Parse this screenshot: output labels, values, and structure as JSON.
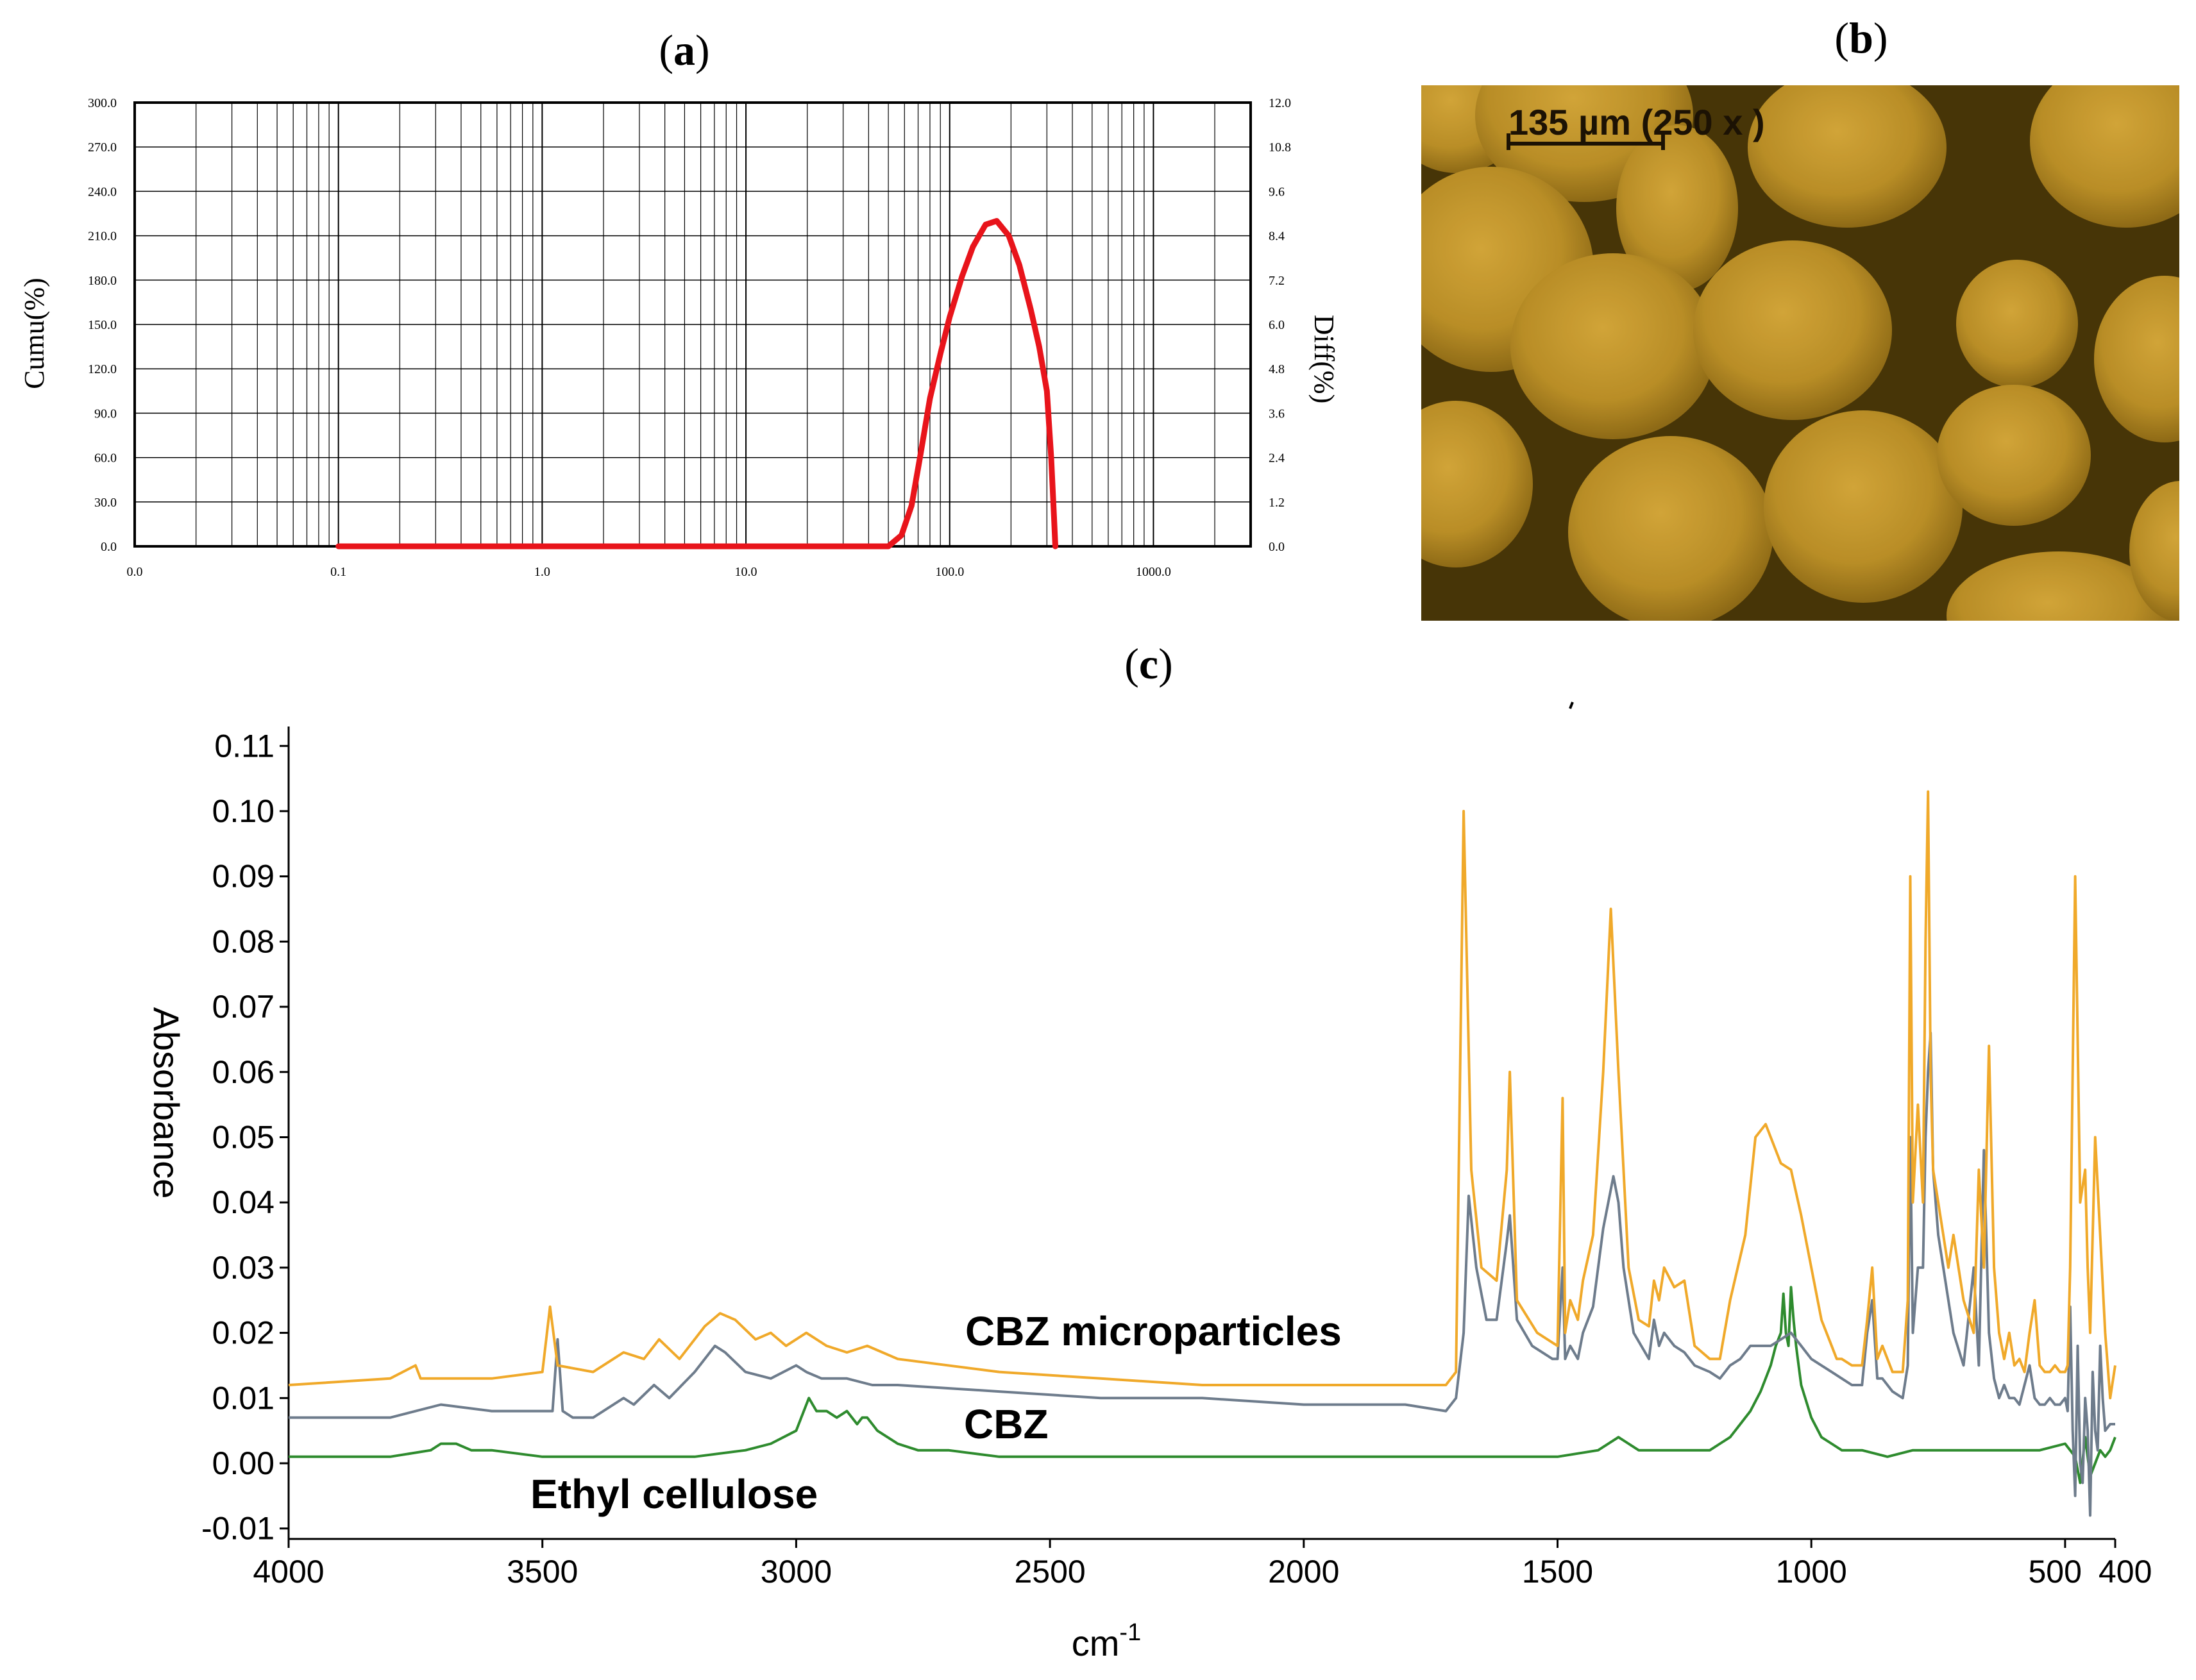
{
  "panels": {
    "a": {
      "label": "a",
      "chart_data": {
        "type": "line",
        "title": "",
        "x_scale": "log",
        "xlim": [
          0.01,
          3000
        ],
        "x_ticks": [
          0.01,
          0.1,
          1,
          10,
          100,
          1000
        ],
        "x_tick_labels": [
          "0.0",
          "0.1",
          "1.0",
          "10.0",
          "100.0",
          "1000.0"
        ],
        "ylabel_left": "Cumu(%)",
        "ylim_left": [
          0,
          300
        ],
        "y_tick_labels_left": [
          "0.0",
          "30.0",
          "60.0",
          "90.0",
          "120.0",
          "150.0",
          "180.0",
          "210.0",
          "240.0",
          "270.0",
          "300.0"
        ],
        "ylabel_right": "Diff(%)",
        "ylim_right": [
          0,
          12
        ],
        "y_tick_labels_right": [
          "0.0",
          "1.2",
          "2.4",
          "3.6",
          "4.8",
          "6.0",
          "7.2",
          "8.4",
          "9.6",
          "10.8",
          "12.0"
        ],
        "grid": true,
        "series": [
          {
            "name": "Diff(%)",
            "axis": "right",
            "color": "#e8141b",
            "x": [
              0.1,
              1,
              10,
              50,
              58,
              65,
              72,
              80,
              90,
              100,
              115,
              130,
              150,
              170,
              195,
              220,
              250,
              275,
              300,
              315,
              325,
              330
            ],
            "y": [
              0,
              0,
              0,
              0,
              0.3,
              1.1,
              2.5,
              4.0,
              5.2,
              6.2,
              7.3,
              8.1,
              8.7,
              8.8,
              8.4,
              7.6,
              6.4,
              5.4,
              4.2,
              2.4,
              0.8,
              0
            ]
          }
        ]
      }
    },
    "b": {
      "label": "b",
      "image_description": "optical micrograph of spherical yellowish microparticles",
      "scale_bar_text": "135 µm (250 x )"
    },
    "c": {
      "label": "c",
      "chart_data": {
        "type": "line",
        "title": "",
        "xlabel": "cm",
        "xlabel_sup": "-1",
        "ylabel": "Absorbance",
        "xlim": [
          4000,
          400
        ],
        "x_ticks": [
          4000,
          3500,
          3000,
          2500,
          2000,
          1500,
          1000,
          500,
          400
        ],
        "x_tick_labels": [
          "4000",
          "3500",
          "3000",
          "2500",
          "2000",
          "1500",
          "1000",
          "500",
          "400"
        ],
        "ylim": [
          -0.01,
          0.11
        ],
        "y_ticks": [
          -0.01,
          0.0,
          0.01,
          0.02,
          0.03,
          0.04,
          0.05,
          0.06,
          0.07,
          0.08,
          0.09,
          0.1,
          0.11
        ],
        "y_tick_labels": [
          "-0.01",
          "0.00",
          "0.01",
          "0.02",
          "0.03",
          "0.04",
          "0.05",
          "0.06",
          "0.07",
          "0.08",
          "0.09",
          "0.10",
          "0.11"
        ],
        "series": [
          {
            "name": "CBZ microparticles",
            "color": "#f0a92a",
            "x": [
              4000,
              3800,
              3750,
              3740,
              3700,
              3600,
              3500,
              3485,
              3470,
              3400,
              3340,
              3300,
              3270,
              3230,
              3180,
              3150,
              3120,
              3080,
              3050,
              3020,
              2980,
              2940,
              2900,
              2860,
              2800,
              2600,
              2400,
              2200,
              2000,
              1800,
              1720,
              1700,
              1685,
              1670,
              1650,
              1620,
              1600,
              1594,
              1580,
              1540,
              1500,
              1490,
              1485,
              1475,
              1460,
              1450,
              1430,
              1410,
              1395,
              1380,
              1360,
              1340,
              1320,
              1310,
              1300,
              1290,
              1270,
              1250,
              1230,
              1200,
              1180,
              1160,
              1130,
              1110,
              1090,
              1060,
              1040,
              1020,
              1000,
              980,
              960,
              950,
              940,
              920,
              900,
              890,
              880,
              870,
              860,
              840,
              820,
              810,
              805,
              800,
              790,
              780,
              775,
              770,
              765,
              760,
              750,
              740,
              730,
              720,
              700,
              680,
              670,
              660,
              650,
              640,
              630,
              620,
              610,
              600,
              590,
              580,
              570,
              560,
              550,
              540,
              530,
              520,
              510,
              500,
              495,
              490,
              480,
              470,
              460,
              455,
              450,
              440,
              430,
              420,
              410,
              400
            ],
            "y": [
              0.012,
              0.013,
              0.015,
              0.013,
              0.013,
              0.013,
              0.014,
              0.024,
              0.015,
              0.014,
              0.017,
              0.016,
              0.019,
              0.016,
              0.021,
              0.023,
              0.022,
              0.019,
              0.02,
              0.018,
              0.02,
              0.018,
              0.017,
              0.018,
              0.016,
              0.014,
              0.013,
              0.012,
              0.012,
              0.012,
              0.012,
              0.014,
              0.1,
              0.045,
              0.03,
              0.028,
              0.045,
              0.06,
              0.025,
              0.02,
              0.018,
              0.056,
              0.02,
              0.025,
              0.022,
              0.028,
              0.035,
              0.06,
              0.085,
              0.06,
              0.03,
              0.022,
              0.021,
              0.028,
              0.025,
              0.03,
              0.027,
              0.028,
              0.018,
              0.016,
              0.016,
              0.025,
              0.035,
              0.05,
              0.052,
              0.046,
              0.045,
              0.038,
              0.03,
              0.022,
              0.018,
              0.016,
              0.016,
              0.015,
              0.015,
              0.022,
              0.03,
              0.016,
              0.018,
              0.014,
              0.014,
              0.025,
              0.09,
              0.04,
              0.055,
              0.04,
              0.08,
              0.103,
              0.06,
              0.045,
              0.04,
              0.035,
              0.03,
              0.035,
              0.025,
              0.02,
              0.045,
              0.03,
              0.064,
              0.03,
              0.02,
              0.016,
              0.02,
              0.015,
              0.016,
              0.014,
              0.02,
              0.025,
              0.015,
              0.014,
              0.014,
              0.015,
              0.014,
              0.014,
              0.015,
              0.03,
              0.09,
              0.04,
              0.045,
              0.03,
              0.02,
              0.05,
              0.035,
              0.02,
              0.01,
              0.015
            ]
          },
          {
            "name": "CBZ",
            "color": "#6e7c8c",
            "x": [
              4000,
              3800,
              3700,
              3600,
              3500,
              3480,
              3470,
              3460,
              3440,
              3400,
              3340,
              3320,
              3280,
              3250,
              3200,
              3160,
              3140,
              3100,
              3050,
              3000,
              2980,
              2950,
              2900,
              2850,
              2800,
              2600,
              2400,
              2200,
              2000,
              1800,
              1720,
              1700,
              1685,
              1675,
              1660,
              1640,
              1620,
              1600,
              1594,
              1580,
              1550,
              1510,
              1500,
              1490,
              1485,
              1475,
              1460,
              1450,
              1430,
              1410,
              1390,
              1380,
              1370,
              1350,
              1320,
              1310,
              1300,
              1290,
              1270,
              1250,
              1230,
              1200,
              1180,
              1160,
              1140,
              1120,
              1100,
              1080,
              1060,
              1040,
              1020,
              1000,
              980,
              960,
              940,
              920,
              900,
              890,
              880,
              870,
              860,
              840,
              820,
              810,
              805,
              800,
              790,
              780,
              775,
              770,
              765,
              760,
              750,
              740,
              730,
              720,
              700,
              680,
              670,
              660,
              650,
              640,
              630,
              620,
              610,
              600,
              590,
              580,
              570,
              560,
              550,
              540,
              530,
              520,
              510,
              500,
              495,
              490,
              485,
              480,
              475,
              470,
              465,
              460,
              455,
              450,
              445,
              440,
              435,
              430,
              425,
              420,
              410,
              400
            ],
            "y": [
              0.007,
              0.007,
              0.009,
              0.008,
              0.008,
              0.008,
              0.019,
              0.008,
              0.007,
              0.007,
              0.01,
              0.009,
              0.012,
              0.01,
              0.014,
              0.018,
              0.017,
              0.014,
              0.013,
              0.015,
              0.014,
              0.013,
              0.013,
              0.012,
              0.012,
              0.011,
              0.01,
              0.01,
              0.009,
              0.009,
              0.008,
              0.01,
              0.02,
              0.041,
              0.03,
              0.022,
              0.022,
              0.034,
              0.038,
              0.022,
              0.018,
              0.016,
              0.016,
              0.03,
              0.016,
              0.018,
              0.016,
              0.02,
              0.024,
              0.036,
              0.044,
              0.04,
              0.03,
              0.02,
              0.016,
              0.022,
              0.018,
              0.02,
              0.018,
              0.017,
              0.015,
              0.014,
              0.013,
              0.015,
              0.016,
              0.018,
              0.018,
              0.018,
              0.019,
              0.02,
              0.018,
              0.016,
              0.015,
              0.014,
              0.013,
              0.012,
              0.012,
              0.02,
              0.025,
              0.013,
              0.013,
              0.011,
              0.01,
              0.015,
              0.05,
              0.02,
              0.03,
              0.03,
              0.05,
              0.06,
              0.066,
              0.045,
              0.035,
              0.03,
              0.025,
              0.02,
              0.015,
              0.03,
              0.015,
              0.048,
              0.02,
              0.013,
              0.01,
              0.012,
              0.01,
              0.01,
              0.009,
              0.012,
              0.015,
              0.01,
              0.009,
              0.009,
              0.01,
              0.009,
              0.009,
              0.01,
              0.008,
              0.024,
              0.005,
              -0.005,
              0.018,
              0.0,
              -0.003,
              0.01,
              0.005,
              -0.008,
              0.014,
              0.005,
              0.002,
              0.018,
              0.01,
              0.005,
              0.006,
              0.006
            ]
          },
          {
            "name": "Ethyl cellulose",
            "color": "#2e8b2e",
            "x": [
              4000,
              3800,
              3720,
              3700,
              3670,
              3640,
              3600,
              3500,
              3400,
              3200,
              3100,
              3050,
              3000,
              2990,
              2975,
              2960,
              2940,
              2920,
              2900,
              2880,
              2870,
              2860,
              2840,
              2800,
              2760,
              2700,
              2600,
              2400,
              2200,
              2000,
              1800,
              1600,
              1500,
              1420,
              1380,
              1360,
              1340,
              1300,
              1250,
              1200,
              1180,
              1160,
              1140,
              1120,
              1100,
              1090,
              1080,
              1070,
              1060,
              1055,
              1050,
              1045,
              1040,
              1035,
              1030,
              1025,
              1020,
              1000,
              980,
              960,
              940,
              920,
              900,
              850,
              800,
              750,
              700,
              650,
              600,
              550,
              500,
              480,
              470,
              460,
              450,
              440,
              430,
              420,
              410,
              400
            ],
            "y": [
              0.001,
              0.001,
              0.002,
              0.003,
              0.003,
              0.002,
              0.002,
              0.001,
              0.001,
              0.001,
              0.002,
              0.003,
              0.005,
              0.007,
              0.01,
              0.008,
              0.008,
              0.007,
              0.008,
              0.006,
              0.007,
              0.007,
              0.005,
              0.003,
              0.002,
              0.002,
              0.001,
              0.001,
              0.001,
              0.001,
              0.001,
              0.001,
              0.001,
              0.002,
              0.004,
              0.003,
              0.002,
              0.002,
              0.002,
              0.002,
              0.003,
              0.004,
              0.006,
              0.008,
              0.011,
              0.013,
              0.015,
              0.018,
              0.02,
              0.026,
              0.02,
              0.018,
              0.027,
              0.022,
              0.018,
              0.015,
              0.012,
              0.007,
              0.004,
              0.003,
              0.002,
              0.002,
              0.002,
              0.001,
              0.002,
              0.002,
              0.002,
              0.002,
              0.002,
              0.002,
              0.003,
              0.001,
              -0.003,
              0.004,
              -0.002,
              0.0,
              0.002,
              0.001,
              0.002,
              0.004
            ]
          }
        ],
        "annotations": [
          "CBZ microparticles",
          "CBZ",
          "Ethyl cellulose"
        ]
      }
    }
  }
}
